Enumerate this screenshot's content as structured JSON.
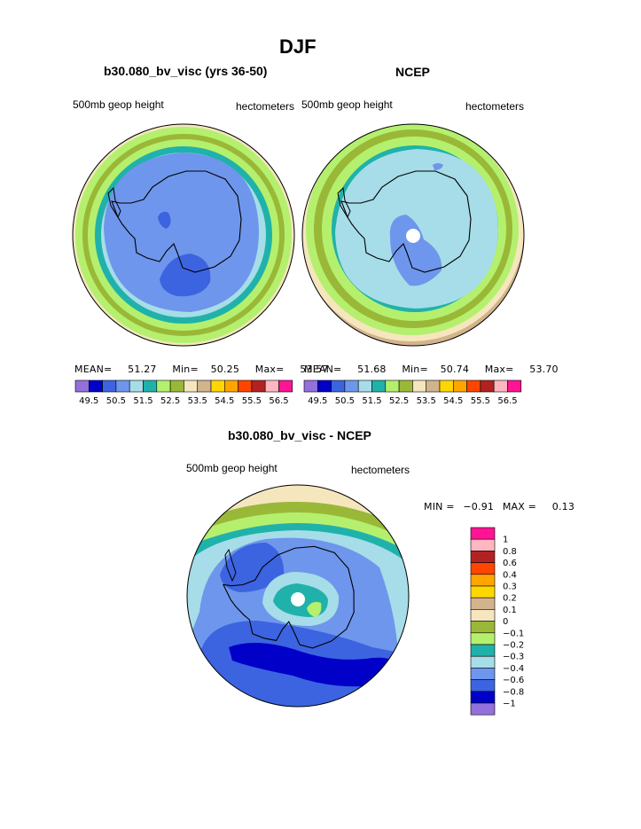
{
  "figure_title": "DJF",
  "colors": {
    "abs_palette": [
      "#9370db",
      "#0000c8",
      "#3c64e0",
      "#6e96ec",
      "#a6dde8",
      "#20b2aa",
      "#b4f06e",
      "#9ab837",
      "#f5e6be",
      "#d2b48c",
      "#ffd700",
      "#ffa500",
      "#ff4500",
      "#b22222",
      "#ffb6c1",
      "#ff1493"
    ],
    "diff_palette": [
      "#9370db",
      "#0000c8",
      "#3c64e0",
      "#6e96ec",
      "#a6dde8",
      "#20b2aa",
      "#b4f06e",
      "#9ab837",
      "#f5e6be",
      "#d2b48c",
      "#ffd700",
      "#ffa500",
      "#ff4500",
      "#b22222",
      "#ffb6c1",
      "#ff1493"
    ],
    "continent_outline": "#000000",
    "pole_marker": "#ffffff"
  },
  "panels": {
    "model": {
      "title": "b30.080_bv_visc (yrs 36-50)",
      "left_label": "500mb geop height",
      "right_label": "hectometers",
      "mean_label": "MEAN=",
      "mean_value": "51.27",
      "min_label": "Min=",
      "min_value": "50.25",
      "max_label": "Max=",
      "max_value": "53.57"
    },
    "obs": {
      "title": "NCEP",
      "left_label": "500mb geop height",
      "right_label": "hectometers",
      "mean_label": "MEAN=",
      "mean_value": "51.68",
      "min_label": "Min=",
      "min_value": "50.74",
      "max_label": "Max=",
      "max_value": "53.70"
    },
    "diff": {
      "title": "b30.080_bv_visc - NCEP",
      "left_label": "500mb geop height",
      "right_label": "hectometers",
      "min_label": "MIN =",
      "min_value": "−0.91",
      "max_label": "MAX =",
      "max_value": "0.13"
    }
  },
  "chart_data": [
    {
      "type": "heatmap",
      "projection": "south-polar stereographic",
      "title": "b30.080_bv_visc (yrs 36-50)",
      "variable": "500mb geop height",
      "units": "hectometers",
      "contour_levels": [
        49.5,
        49.75,
        50.0,
        50.25,
        50.5,
        50.75,
        51.0,
        51.25,
        51.5,
        51.75,
        52.0,
        52.25,
        52.5,
        52.75,
        53.0,
        53.25,
        53.5,
        53.75,
        54.0,
        54.25,
        54.5,
        54.75,
        55.0,
        55.25,
        55.5,
        55.75,
        56.0,
        56.25,
        56.5
      ],
      "colorbar_tick_labels": [
        "49.5",
        "50.5",
        "51.5",
        "52.5",
        "53.5",
        "54.5",
        "55.5",
        "56.5"
      ],
      "mean": 51.27,
      "min": 50.25,
      "max": 53.57
    },
    {
      "type": "heatmap",
      "projection": "south-polar stereographic",
      "title": "NCEP",
      "variable": "500mb geop height",
      "units": "hectometers",
      "colorbar_tick_labels": [
        "49.5",
        "50.5",
        "51.5",
        "52.5",
        "53.5",
        "54.5",
        "55.5",
        "56.5"
      ],
      "mean": 51.68,
      "min": 50.74,
      "max": 53.7
    },
    {
      "type": "heatmap",
      "projection": "south-polar stereographic",
      "title": "b30.080_bv_visc - NCEP",
      "variable": "500mb geop height",
      "units": "hectometers",
      "colorbar_tick_labels": [
        "1",
        "0.8",
        "0.6",
        "0.4",
        "0.3",
        "0.2",
        "0.1",
        "0",
        "−0.1",
        "−0.2",
        "−0.3",
        "−0.4",
        "−0.6",
        "−0.8",
        "−1"
      ],
      "min": -0.91,
      "max": 0.13
    }
  ]
}
